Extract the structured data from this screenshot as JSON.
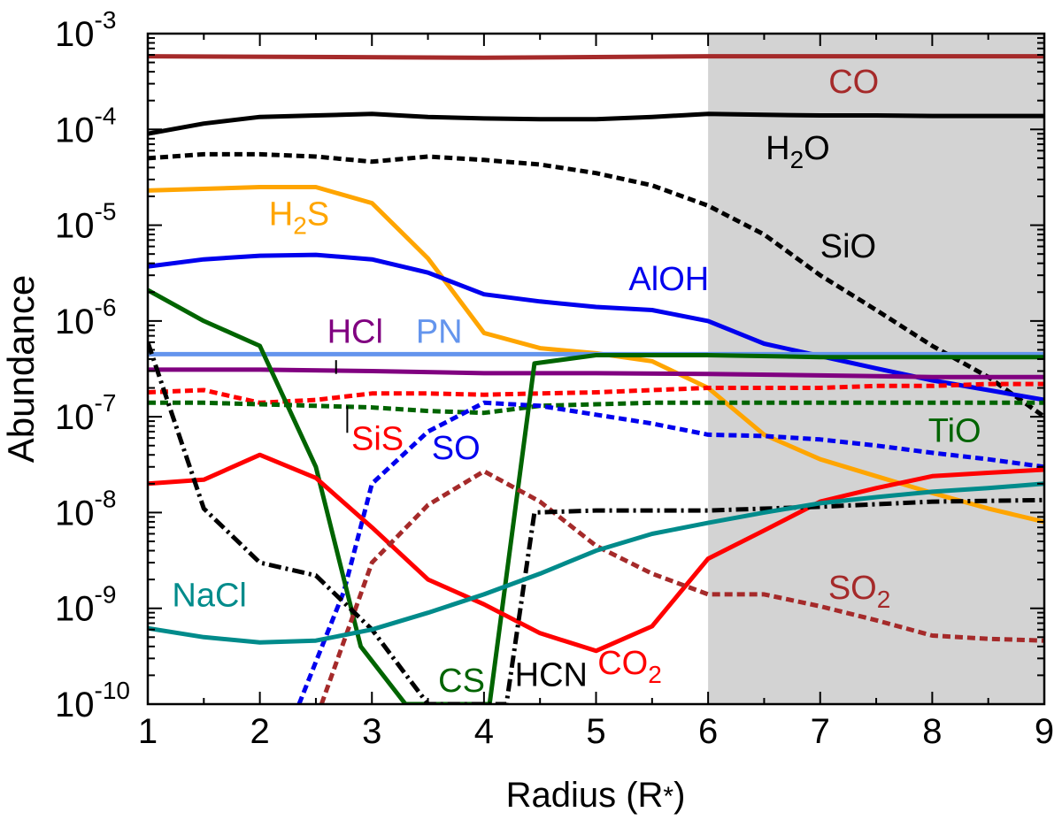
{
  "chart_data": {
    "type": "line",
    "xlabel": "Radius (R",
    "xlabel_star": "*",
    "xlabel_close": ")",
    "ylabel": "Abundance",
    "xlim": [
      1,
      9
    ],
    "ylim": [
      1e-10,
      0.001
    ],
    "yscale": "log",
    "x_ticks": [
      "1",
      "2",
      "3",
      "4",
      "5",
      "6",
      "7",
      "8",
      "9"
    ],
    "y_ticks": [
      {
        "base": "10",
        "exp": "-10",
        "value": 1e-10
      },
      {
        "base": "10",
        "exp": "-9",
        "value": 1e-09
      },
      {
        "base": "10",
        "exp": "-8",
        "value": 1e-08
      },
      {
        "base": "10",
        "exp": "-7",
        "value": 1e-07
      },
      {
        "base": "10",
        "exp": "-6",
        "value": 1e-06
      },
      {
        "base": "10",
        "exp": "-5",
        "value": 1e-05
      },
      {
        "base": "10",
        "exp": "-4",
        "value": 0.0001
      },
      {
        "base": "10",
        "exp": "-3",
        "value": 0.001
      }
    ],
    "shaded_region": {
      "x": [
        6,
        9
      ],
      "color": "#d3d3d3"
    },
    "series": [
      {
        "name": "CO",
        "color": "#a52a2a",
        "dash": "solid",
        "x": [
          1,
          4,
          6,
          9
        ],
        "y": [
          0.00058,
          0.00056,
          0.00058,
          0.00058
        ]
      },
      {
        "name": "H2O",
        "color": "#000000",
        "dash": "solid",
        "x": [
          1,
          1.5,
          2,
          2.5,
          3,
          3.5,
          4,
          4.5,
          5,
          5.5,
          6,
          6.5,
          7,
          7.5,
          8,
          8.5,
          9
        ],
        "y": [
          9e-05,
          0.000115,
          0.000135,
          0.00014,
          0.000145,
          0.000135,
          0.00013,
          0.000128,
          0.000128,
          0.000135,
          0.000145,
          0.000142,
          0.00014,
          0.00014,
          0.000138,
          0.000138,
          0.000138
        ]
      },
      {
        "name": "SiO",
        "color": "#000000",
        "dash": "dotted",
        "x": [
          1,
          1.5,
          2,
          2.5,
          3,
          3.5,
          4,
          4.5,
          5,
          5.5,
          6,
          6.5,
          7,
          7.5,
          8,
          8.5,
          9
        ],
        "y": [
          5e-05,
          5.5e-05,
          5.5e-05,
          5.2e-05,
          4.6e-05,
          5.2e-05,
          4.8e-05,
          4.3e-05,
          3.5e-05,
          2.6e-05,
          1.6e-05,
          8e-06,
          3e-06,
          1.3e-06,
          5.5e-07,
          2.6e-07,
          1e-07
        ]
      },
      {
        "name": "H2S",
        "color": "#ffa500",
        "dash": "solid",
        "x": [
          1,
          2,
          2.5,
          3,
          3.5,
          4,
          4.5,
          5,
          5.5,
          6,
          6.5,
          7,
          7.5,
          8,
          8.5,
          9
        ],
        "y": [
          2.3e-05,
          2.5e-05,
          2.5e-05,
          1.7e-05,
          4.5e-06,
          7.5e-07,
          5.2e-07,
          4.6e-07,
          3.8e-07,
          2e-07,
          6.5e-08,
          3.6e-08,
          2.4e-08,
          1.6e-08,
          1.1e-08,
          8e-09
        ]
      },
      {
        "name": "AlOH",
        "color": "#0000ee",
        "dash": "solid",
        "x": [
          1,
          1.5,
          2,
          2.5,
          3,
          3.5,
          4,
          4.5,
          5,
          5.5,
          6,
          6.5,
          7,
          7.5,
          8,
          8.5,
          9
        ],
        "y": [
          3.7e-06,
          4.4e-06,
          4.8e-06,
          4.9e-06,
          4.4e-06,
          3.2e-06,
          1.9e-06,
          1.6e-06,
          1.4e-06,
          1.3e-06,
          1e-06,
          5.8e-07,
          4.3e-07,
          3.2e-07,
          2.4e-07,
          1.9e-07,
          1.5e-07
        ]
      },
      {
        "name": "PN",
        "color": "#6495ed",
        "dash": "solid",
        "x": [
          1,
          9
        ],
        "y": [
          4.5e-07,
          4.5e-07
        ]
      },
      {
        "name": "HCl",
        "color": "#800080",
        "dash": "solid",
        "x": [
          1,
          2,
          3,
          4,
          5,
          6,
          7,
          8,
          9
        ],
        "y": [
          3.1e-07,
          3.1e-07,
          3e-07,
          2.85e-07,
          2.85e-07,
          2.8e-07,
          2.7e-07,
          2.6e-07,
          2.6e-07
        ]
      },
      {
        "name": "SiS",
        "color": "#ff0000",
        "dash": "dotted",
        "x": [
          1,
          1.5,
          2,
          2.5,
          3,
          3.5,
          4,
          4.5,
          5,
          5.5,
          6,
          6.5,
          7,
          7.5,
          8,
          8.5,
          9
        ],
        "y": [
          1.8e-07,
          1.9e-07,
          1.4e-07,
          1.5e-07,
          1.75e-07,
          1.75e-07,
          1.7e-07,
          1.75e-07,
          1.8e-07,
          1.9e-07,
          2e-07,
          2e-07,
          2e-07,
          2.1e-07,
          2.1e-07,
          2.2e-07,
          2.2e-07
        ]
      },
      {
        "name": "TiO",
        "color": "#006400",
        "dash": "dotted",
        "x": [
          1,
          1.5,
          2,
          2.5,
          3,
          3.5,
          4,
          4.5,
          5,
          5.5,
          6,
          6.5,
          7,
          7.5,
          8,
          8.5,
          9
        ],
        "y": [
          1.4e-07,
          1.4e-07,
          1.35e-07,
          1.3e-07,
          1.25e-07,
          1.15e-07,
          1.1e-07,
          1.3e-07,
          1.35e-07,
          1.4e-07,
          1.4e-07,
          1.4e-07,
          1.4e-07,
          1.4e-07,
          1.4e-07,
          1.4e-07,
          1.4e-07
        ]
      },
      {
        "name": "SO",
        "color": "#0000ee",
        "dash": "dotted",
        "x": [
          2.35,
          2.75,
          3,
          3.5,
          4,
          4.5,
          5,
          5.5,
          6,
          6.5,
          7,
          7.5,
          8,
          8.5,
          9
        ],
        "y": [
          1e-10,
          1.5e-09,
          2e-08,
          7e-08,
          1.4e-07,
          1.3e-07,
          1.05e-07,
          8.5e-08,
          6.5e-08,
          6.3e-08,
          5.8e-08,
          5e-08,
          4.2e-08,
          3.6e-08,
          3e-08
        ]
      },
      {
        "name": "CS",
        "color": "#006400",
        "dash": "solid",
        "x": [
          1,
          1.5,
          2,
          2.5,
          2.9,
          3.3,
          4.05,
          4.45,
          5,
          6,
          7,
          8,
          9
        ],
        "y": [
          2.1e-06,
          1e-06,
          5.5e-07,
          3e-08,
          4e-10,
          1e-10,
          1e-10,
          3.6e-07,
          4.4e-07,
          4.4e-07,
          4.2e-07,
          4.2e-07,
          4.2e-07
        ]
      },
      {
        "name": "CO2",
        "color": "#ff0000",
        "dash": "solid",
        "x": [
          1,
          1.5,
          2,
          2.5,
          3,
          3.5,
          4,
          4.5,
          5,
          5.5,
          6,
          6.5,
          7,
          7.5,
          8,
          8.5,
          9
        ],
        "y": [
          2e-08,
          2.2e-08,
          4e-08,
          2.3e-08,
          7e-09,
          2e-09,
          1.1e-09,
          5.5e-10,
          3.6e-10,
          6.5e-10,
          3.3e-09,
          6.5e-09,
          1.3e-08,
          1.8e-08,
          2.4e-08,
          2.6e-08,
          2.8e-08
        ]
      },
      {
        "name": "SO2",
        "color": "#a52a2a",
        "dash": "dotted",
        "x": [
          2.55,
          3,
          3.5,
          4,
          4.5,
          5,
          5.5,
          6,
          6.5,
          7,
          7.5,
          8,
          8.5,
          9
        ],
        "y": [
          1e-10,
          3e-09,
          1.2e-08,
          2.7e-08,
          1.3e-08,
          4.5e-09,
          2.3e-09,
          1.4e-09,
          1.4e-09,
          1.05e-09,
          7.5e-10,
          5.2e-10,
          4.8e-10,
          4.6e-10
        ]
      },
      {
        "name": "HCN",
        "color": "#000000",
        "dash": "dashdot",
        "x": [
          1,
          1.5,
          2,
          2.5,
          3,
          3.5,
          4.2,
          4.45,
          5,
          6,
          7,
          8,
          9
        ],
        "y": [
          6e-07,
          1.1e-08,
          3e-09,
          2.2e-09,
          6e-10,
          1e-10,
          1e-10,
          1e-08,
          1.05e-08,
          1.05e-08,
          1.15e-08,
          1.3e-08,
          1.35e-08
        ]
      },
      {
        "name": "NaCl",
        "color": "#008b8b",
        "dash": "solid",
        "x": [
          1,
          1.5,
          2,
          2.5,
          3,
          3.5,
          4,
          4.5,
          5,
          5.5,
          6,
          6.5,
          7,
          7.5,
          8,
          8.5,
          9
        ],
        "y": [
          6.2e-10,
          5e-10,
          4.4e-10,
          4.6e-10,
          6e-10,
          9e-10,
          1.4e-09,
          2.3e-09,
          4e-09,
          6e-09,
          7.8e-09,
          1e-08,
          1.25e-08,
          1.45e-08,
          1.65e-08,
          1.8e-08,
          2e-08
        ]
      }
    ],
    "labels": [
      {
        "base": "CO",
        "sub": "",
        "color": "#a52a2a",
        "x": 7.3,
        "y": 0.00024
      },
      {
        "base": "H",
        "sub": "2",
        "tail": "O",
        "color": "#000000",
        "x": 6.8,
        "y": 4.9e-05
      },
      {
        "base": "H",
        "sub": "2",
        "tail": "S",
        "color": "#ffa500",
        "x": 2.35,
        "y": 1e-05
      },
      {
        "base": "SiO",
        "sub": "",
        "color": "#000000",
        "x": 7.25,
        "y": 4.6e-06
      },
      {
        "base": "AlOH",
        "sub": "",
        "color": "#0000ee",
        "x": 5.65,
        "y": 2.1e-06
      },
      {
        "base": "HCl",
        "sub": "",
        "color": "#800080",
        "x": 2.85,
        "y": 5.9e-07
      },
      {
        "base": "PN",
        "sub": "",
        "color": "#6495ed",
        "x": 3.6,
        "y": 5.9e-07
      },
      {
        "base": "TiO",
        "sub": "",
        "color": "#006400",
        "x": 8.2,
        "y": 5.5e-08
      },
      {
        "base": "SiS",
        "sub": "",
        "color": "#ff0000",
        "x": 3.05,
        "y": 4.5e-08
      },
      {
        "base": "SO",
        "sub": "",
        "color": "#0000ee",
        "x": 3.75,
        "y": 3.6e-08
      },
      {
        "base": "NaCl",
        "sub": "",
        "color": "#008b8b",
        "x": 1.55,
        "y": 1.05e-09
      },
      {
        "base": "SO",
        "sub": "2",
        "color": "#a52a2a",
        "x": 7.35,
        "y": 1.25e-09
      },
      {
        "base": "CO",
        "sub": "2",
        "color": "#ff0000",
        "x": 5.3,
        "y": 2.05e-10
      },
      {
        "base": "CS",
        "sub": "",
        "color": "#006400",
        "x": 3.8,
        "y": 1.35e-10
      },
      {
        "base": "HCN",
        "sub": "",
        "color": "#000000",
        "x": 4.6,
        "y": 1.55e-10
      }
    ],
    "leader_lines": [
      {
        "name": "HCl",
        "x": 2.68,
        "y": [
          2.8e-07,
          3.9e-07
        ]
      },
      {
        "name": "SiS",
        "x": 2.78,
        "y": [
          6.8e-08,
          1.3e-07
        ]
      }
    ]
  }
}
